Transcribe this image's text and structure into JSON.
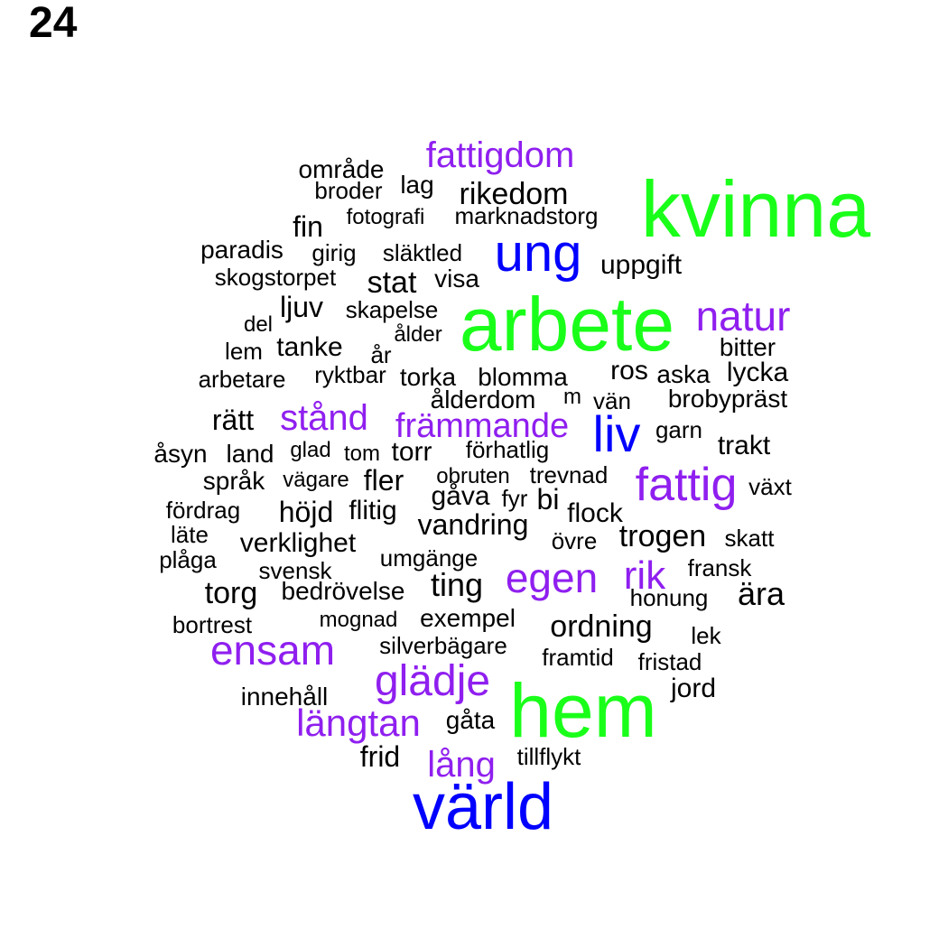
{
  "page_number": "24",
  "colors": {
    "green": "#1aff1a",
    "blue": "#0000ff",
    "purple": "#8f1fef",
    "black": "#000000"
  },
  "words": [
    {
      "text": "kvinna",
      "color": "green"
    },
    {
      "text": "arbete",
      "color": "green"
    },
    {
      "text": "hem",
      "color": "green"
    },
    {
      "text": "värld",
      "color": "blue"
    },
    {
      "text": "ung",
      "color": "blue"
    },
    {
      "text": "liv",
      "color": "blue"
    },
    {
      "text": "fattigdom",
      "color": "purple"
    },
    {
      "text": "natur",
      "color": "purple"
    },
    {
      "text": "stånd",
      "color": "purple"
    },
    {
      "text": "främmande",
      "color": "purple"
    },
    {
      "text": "fattig",
      "color": "purple"
    },
    {
      "text": "egen",
      "color": "purple"
    },
    {
      "text": "rik",
      "color": "purple"
    },
    {
      "text": "ensam",
      "color": "purple"
    },
    {
      "text": "glädje",
      "color": "purple"
    },
    {
      "text": "längtan",
      "color": "purple"
    },
    {
      "text": "lång",
      "color": "purple"
    },
    {
      "text": "område",
      "color": "black"
    },
    {
      "text": "lag",
      "color": "black"
    },
    {
      "text": "broder",
      "color": "black"
    },
    {
      "text": "rikedom",
      "color": "black"
    },
    {
      "text": "fin",
      "color": "black"
    },
    {
      "text": "fotografi",
      "color": "black"
    },
    {
      "text": "marknadstorg",
      "color": "black"
    },
    {
      "text": "paradis",
      "color": "black"
    },
    {
      "text": "girig",
      "color": "black"
    },
    {
      "text": "släktled",
      "color": "black"
    },
    {
      "text": "uppgift",
      "color": "black"
    },
    {
      "text": "skogstorpet",
      "color": "black"
    },
    {
      "text": "stat",
      "color": "black"
    },
    {
      "text": "visa",
      "color": "black"
    },
    {
      "text": "ljuv",
      "color": "black"
    },
    {
      "text": "skapelse",
      "color": "black"
    },
    {
      "text": "del",
      "color": "black"
    },
    {
      "text": "ålder",
      "color": "black"
    },
    {
      "text": "lem",
      "color": "black"
    },
    {
      "text": "tanke",
      "color": "black"
    },
    {
      "text": "år",
      "color": "black"
    },
    {
      "text": "bitter",
      "color": "black"
    },
    {
      "text": "arbetare",
      "color": "black"
    },
    {
      "text": "ryktbar",
      "color": "black"
    },
    {
      "text": "torka",
      "color": "black"
    },
    {
      "text": "blomma",
      "color": "black"
    },
    {
      "text": "ros",
      "color": "black"
    },
    {
      "text": "aska",
      "color": "black"
    },
    {
      "text": "lycka",
      "color": "black"
    },
    {
      "text": "ålderdom",
      "color": "black"
    },
    {
      "text": "m",
      "color": "black"
    },
    {
      "text": "vän",
      "color": "black"
    },
    {
      "text": "brobypräst",
      "color": "black"
    },
    {
      "text": "rätt",
      "color": "black"
    },
    {
      "text": "garn",
      "color": "black"
    },
    {
      "text": "åsyn",
      "color": "black"
    },
    {
      "text": "land",
      "color": "black"
    },
    {
      "text": "glad",
      "color": "black"
    },
    {
      "text": "tom",
      "color": "black"
    },
    {
      "text": "torr",
      "color": "black"
    },
    {
      "text": "förhatlig",
      "color": "black"
    },
    {
      "text": "trakt",
      "color": "black"
    },
    {
      "text": "språk",
      "color": "black"
    },
    {
      "text": "vägare",
      "color": "black"
    },
    {
      "text": "fler",
      "color": "black"
    },
    {
      "text": "obruten",
      "color": "black"
    },
    {
      "text": "trevnad",
      "color": "black"
    },
    {
      "text": "växt",
      "color": "black"
    },
    {
      "text": "fördrag",
      "color": "black"
    },
    {
      "text": "höjd",
      "color": "black"
    },
    {
      "text": "flitig",
      "color": "black"
    },
    {
      "text": "gåva",
      "color": "black"
    },
    {
      "text": "fyr",
      "color": "black"
    },
    {
      "text": "bi",
      "color": "black"
    },
    {
      "text": "flock",
      "color": "black"
    },
    {
      "text": "läte",
      "color": "black"
    },
    {
      "text": "vandring",
      "color": "black"
    },
    {
      "text": "trogen",
      "color": "black"
    },
    {
      "text": "skatt",
      "color": "black"
    },
    {
      "text": "plåga",
      "color": "black"
    },
    {
      "text": "verklighet",
      "color": "black"
    },
    {
      "text": "övre",
      "color": "black"
    },
    {
      "text": "umgänge",
      "color": "black"
    },
    {
      "text": "svensk",
      "color": "black"
    },
    {
      "text": "fransk",
      "color": "black"
    },
    {
      "text": "torg",
      "color": "black"
    },
    {
      "text": "bedrövelse",
      "color": "black"
    },
    {
      "text": "ting",
      "color": "black"
    },
    {
      "text": "honung",
      "color": "black"
    },
    {
      "text": "ära",
      "color": "black"
    },
    {
      "text": "bortrest",
      "color": "black"
    },
    {
      "text": "mognad",
      "color": "black"
    },
    {
      "text": "exempel",
      "color": "black"
    },
    {
      "text": "ordning",
      "color": "black"
    },
    {
      "text": "silverbägare",
      "color": "black"
    },
    {
      "text": "lek",
      "color": "black"
    },
    {
      "text": "framtid",
      "color": "black"
    },
    {
      "text": "fristad",
      "color": "black"
    },
    {
      "text": "jord",
      "color": "black"
    },
    {
      "text": "innehåll",
      "color": "black"
    },
    {
      "text": "gåta",
      "color": "black"
    },
    {
      "text": "frid",
      "color": "black"
    },
    {
      "text": "tillflykt",
      "color": "black"
    }
  ]
}
